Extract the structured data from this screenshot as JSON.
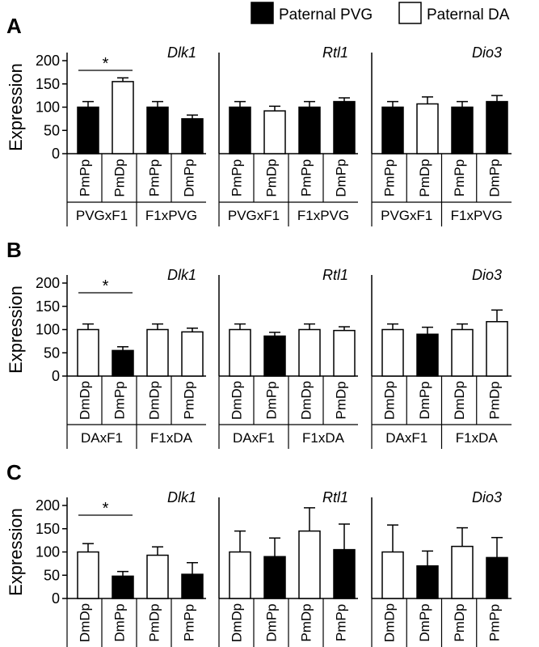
{
  "legend": {
    "position": "top-right",
    "items": [
      {
        "label": "Paternal PVG",
        "fill": "#000000"
      },
      {
        "label": "Paternal DA",
        "fill": "#ffffff"
      }
    ]
  },
  "colors": {
    "paternal_pvg": "#000000",
    "paternal_da": "#ffffff",
    "axis": "#000000"
  },
  "chart_data": [
    {
      "panel": "A",
      "type": "bar",
      "ylabel": "Expression",
      "ylim": [
        0,
        200
      ],
      "yticks": [
        0,
        50,
        100,
        150,
        200
      ],
      "subplots": [
        {
          "gene": "Dlk1",
          "categories": [
            "PmPp",
            "PmDp",
            "PmPp",
            "DmPp"
          ],
          "values": [
            100,
            155,
            100,
            75
          ],
          "errors": [
            12,
            8,
            12,
            8
          ],
          "paternal": [
            "PVG",
            "DA",
            "PVG",
            "PVG"
          ],
          "groups": [
            {
              "label": "PVGxF1",
              "span": [
                0,
                1
              ]
            },
            {
              "label": "F1xPVG",
              "span": [
                2,
                3
              ]
            }
          ],
          "significance": [
            {
              "between": [
                0,
                1
              ],
              "label": "*"
            }
          ]
        },
        {
          "gene": "Rtl1",
          "categories": [
            "PmPp",
            "PmDp",
            "PmPp",
            "DmPp"
          ],
          "values": [
            100,
            92,
            100,
            112
          ],
          "errors": [
            12,
            10,
            12,
            8
          ],
          "paternal": [
            "PVG",
            "DA",
            "PVG",
            "PVG"
          ],
          "groups": [
            {
              "label": "PVGxF1",
              "span": [
                0,
                1
              ]
            },
            {
              "label": "F1xPVG",
              "span": [
                2,
                3
              ]
            }
          ],
          "significance": []
        },
        {
          "gene": "Dio3",
          "categories": [
            "PmPp",
            "PmDp",
            "PmPp",
            "DmPp"
          ],
          "values": [
            100,
            107,
            100,
            112
          ],
          "errors": [
            12,
            15,
            12,
            13
          ],
          "paternal": [
            "PVG",
            "DA",
            "PVG",
            "PVG"
          ],
          "groups": [
            {
              "label": "PVGxF1",
              "span": [
                0,
                1
              ]
            },
            {
              "label": "F1xPVG",
              "span": [
                2,
                3
              ]
            }
          ],
          "significance": []
        }
      ]
    },
    {
      "panel": "B",
      "type": "bar",
      "ylabel": "Expression",
      "ylim": [
        0,
        200
      ],
      "yticks": [
        0,
        50,
        100,
        150,
        200
      ],
      "subplots": [
        {
          "gene": "Dlk1",
          "categories": [
            "DmDp",
            "DmPp",
            "DmDp",
            "PmDp"
          ],
          "values": [
            100,
            55,
            100,
            95
          ],
          "errors": [
            12,
            8,
            12,
            8
          ],
          "paternal": [
            "DA",
            "PVG",
            "DA",
            "DA"
          ],
          "groups": [
            {
              "label": "DAxF1",
              "span": [
                0,
                1
              ]
            },
            {
              "label": "F1xDA",
              "span": [
                2,
                3
              ]
            }
          ],
          "significance": [
            {
              "between": [
                0,
                1
              ],
              "label": "*"
            }
          ]
        },
        {
          "gene": "Rtl1",
          "categories": [
            "DmDp",
            "DmPp",
            "DmDp",
            "PmDp"
          ],
          "values": [
            100,
            86,
            100,
            98
          ],
          "errors": [
            12,
            8,
            12,
            8
          ],
          "paternal": [
            "DA",
            "PVG",
            "DA",
            "DA"
          ],
          "groups": [
            {
              "label": "DAxF1",
              "span": [
                0,
                1
              ]
            },
            {
              "label": "F1xDA",
              "span": [
                2,
                3
              ]
            }
          ],
          "significance": []
        },
        {
          "gene": "Dio3",
          "categories": [
            "DmDp",
            "DmPp",
            "DmDp",
            "PmDp"
          ],
          "values": [
            100,
            90,
            100,
            117
          ],
          "errors": [
            12,
            15,
            12,
            25
          ],
          "paternal": [
            "DA",
            "PVG",
            "DA",
            "DA"
          ],
          "groups": [
            {
              "label": "DAxF1",
              "span": [
                0,
                1
              ]
            },
            {
              "label": "F1xDA",
              "span": [
                2,
                3
              ]
            }
          ],
          "significance": []
        }
      ]
    },
    {
      "panel": "C",
      "type": "bar",
      "ylabel": "Expression",
      "ylim": [
        0,
        200
      ],
      "yticks": [
        0,
        50,
        100,
        150,
        200
      ],
      "subplots": [
        {
          "gene": "Dlk1",
          "categories": [
            "DmDp",
            "DmPp",
            "PmDp",
            "PmPp"
          ],
          "values": [
            100,
            48,
            93,
            52
          ],
          "errors": [
            18,
            10,
            18,
            25
          ],
          "paternal": [
            "DA",
            "PVG",
            "DA",
            "PVG"
          ],
          "groups": [],
          "significance": [
            {
              "between": [
                0,
                1
              ],
              "label": "*"
            }
          ]
        },
        {
          "gene": "Rtl1",
          "categories": [
            "DmDp",
            "DmPp",
            "PmDp",
            "PmPp"
          ],
          "values": [
            100,
            90,
            145,
            105
          ],
          "errors": [
            45,
            40,
            50,
            55
          ],
          "paternal": [
            "DA",
            "PVG",
            "DA",
            "PVG"
          ],
          "groups": [],
          "significance": []
        },
        {
          "gene": "Dio3",
          "categories": [
            "DmDp",
            "DmPp",
            "PmDp",
            "PmPp"
          ],
          "values": [
            100,
            70,
            112,
            88
          ],
          "errors": [
            58,
            32,
            40,
            43
          ],
          "paternal": [
            "DA",
            "PVG",
            "DA",
            "PVG"
          ],
          "groups": [],
          "significance": []
        }
      ]
    }
  ]
}
